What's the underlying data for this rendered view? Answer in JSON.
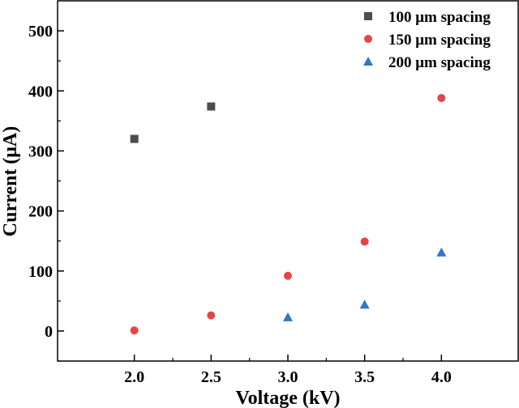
{
  "chart_data": {
    "type": "scatter",
    "xlabel": "Voltage (kV)",
    "ylabel": "Current (μA)",
    "xlim": [
      1.5,
      4.5
    ],
    "ylim": [
      -50,
      550
    ],
    "xticks": [
      "2.0",
      "2.5",
      "3.0",
      "3.5",
      "4.0"
    ],
    "xtick_values": [
      2.0,
      2.5,
      3.0,
      3.5,
      4.0
    ],
    "yticks": [
      "0",
      "100",
      "200",
      "300",
      "400",
      "500"
    ],
    "ytick_values": [
      0,
      100,
      200,
      300,
      400,
      500
    ],
    "legend_position": "top-right",
    "grid": false,
    "series": [
      {
        "name": "100 μm spacing",
        "marker": "square",
        "color": "#4d4d4d",
        "points": [
          {
            "x": 2.0,
            "y": 320
          },
          {
            "x": 2.5,
            "y": 374
          }
        ]
      },
      {
        "name": "150 μm spacing",
        "marker": "circle",
        "color": "#e64545",
        "points": [
          {
            "x": 2.0,
            "y": 1
          },
          {
            "x": 2.5,
            "y": 26
          },
          {
            "x": 3.0,
            "y": 92
          },
          {
            "x": 3.5,
            "y": 149
          },
          {
            "x": 4.0,
            "y": 388
          }
        ]
      },
      {
        "name": "200 μm spacing",
        "marker": "triangle",
        "color": "#2f76cc",
        "points": [
          {
            "x": 3.0,
            "y": 23
          },
          {
            "x": 3.5,
            "y": 44
          },
          {
            "x": 4.0,
            "y": 131
          }
        ]
      }
    ]
  }
}
